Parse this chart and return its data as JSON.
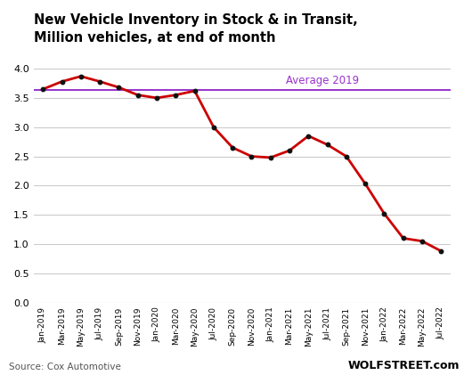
{
  "title_line1": "New Vehicle Inventory in Stock & in Transit,",
  "title_line2": "Million vehicles, at end of month",
  "source": "Source: Cox Automotive",
  "watermark": "WOLFSTREET.com",
  "average_2019": 3.63,
  "average_label": "Average 2019",
  "line_color": "#cc0000",
  "avg_line_color": "#9933cc",
  "background_color": "#ffffff",
  "ylim": [
    0.0,
    4.25
  ],
  "yticks": [
    0.0,
    0.5,
    1.0,
    1.5,
    2.0,
    2.5,
    3.0,
    3.5,
    4.0
  ],
  "data_points": [
    [
      0,
      3.65
    ],
    [
      1,
      3.78
    ],
    [
      2,
      3.87
    ],
    [
      3,
      3.78
    ],
    [
      4,
      3.68
    ],
    [
      5,
      3.55
    ],
    [
      6,
      3.5
    ],
    [
      7,
      3.55
    ],
    [
      8,
      3.62
    ],
    [
      9,
      3.0
    ],
    [
      10,
      2.65
    ],
    [
      11,
      2.5
    ],
    [
      12,
      2.48
    ],
    [
      13,
      2.6
    ],
    [
      14,
      2.85
    ],
    [
      15,
      2.7
    ],
    [
      16,
      2.5
    ],
    [
      17,
      2.03
    ],
    [
      18,
      1.52
    ],
    [
      19,
      1.1
    ],
    [
      20,
      1.05
    ],
    [
      21,
      0.88
    ]
  ],
  "xtick_labels": [
    "Jan-2019",
    "Mar-2019",
    "May-2019",
    "Jul-2019",
    "Sep-2019",
    "Nov-2019",
    "Jan-2020",
    "Mar-2020",
    "May-2020",
    "Jul-2020",
    "Sep-2020",
    "Nov-2020",
    "Jan-2021",
    "Mar-2021",
    "May-2021",
    "Jul-2021",
    "Sep-2021",
    "Nov-2021",
    "Jan-2022",
    "Mar-2022",
    "May-2022",
    "Jul-2022"
  ]
}
